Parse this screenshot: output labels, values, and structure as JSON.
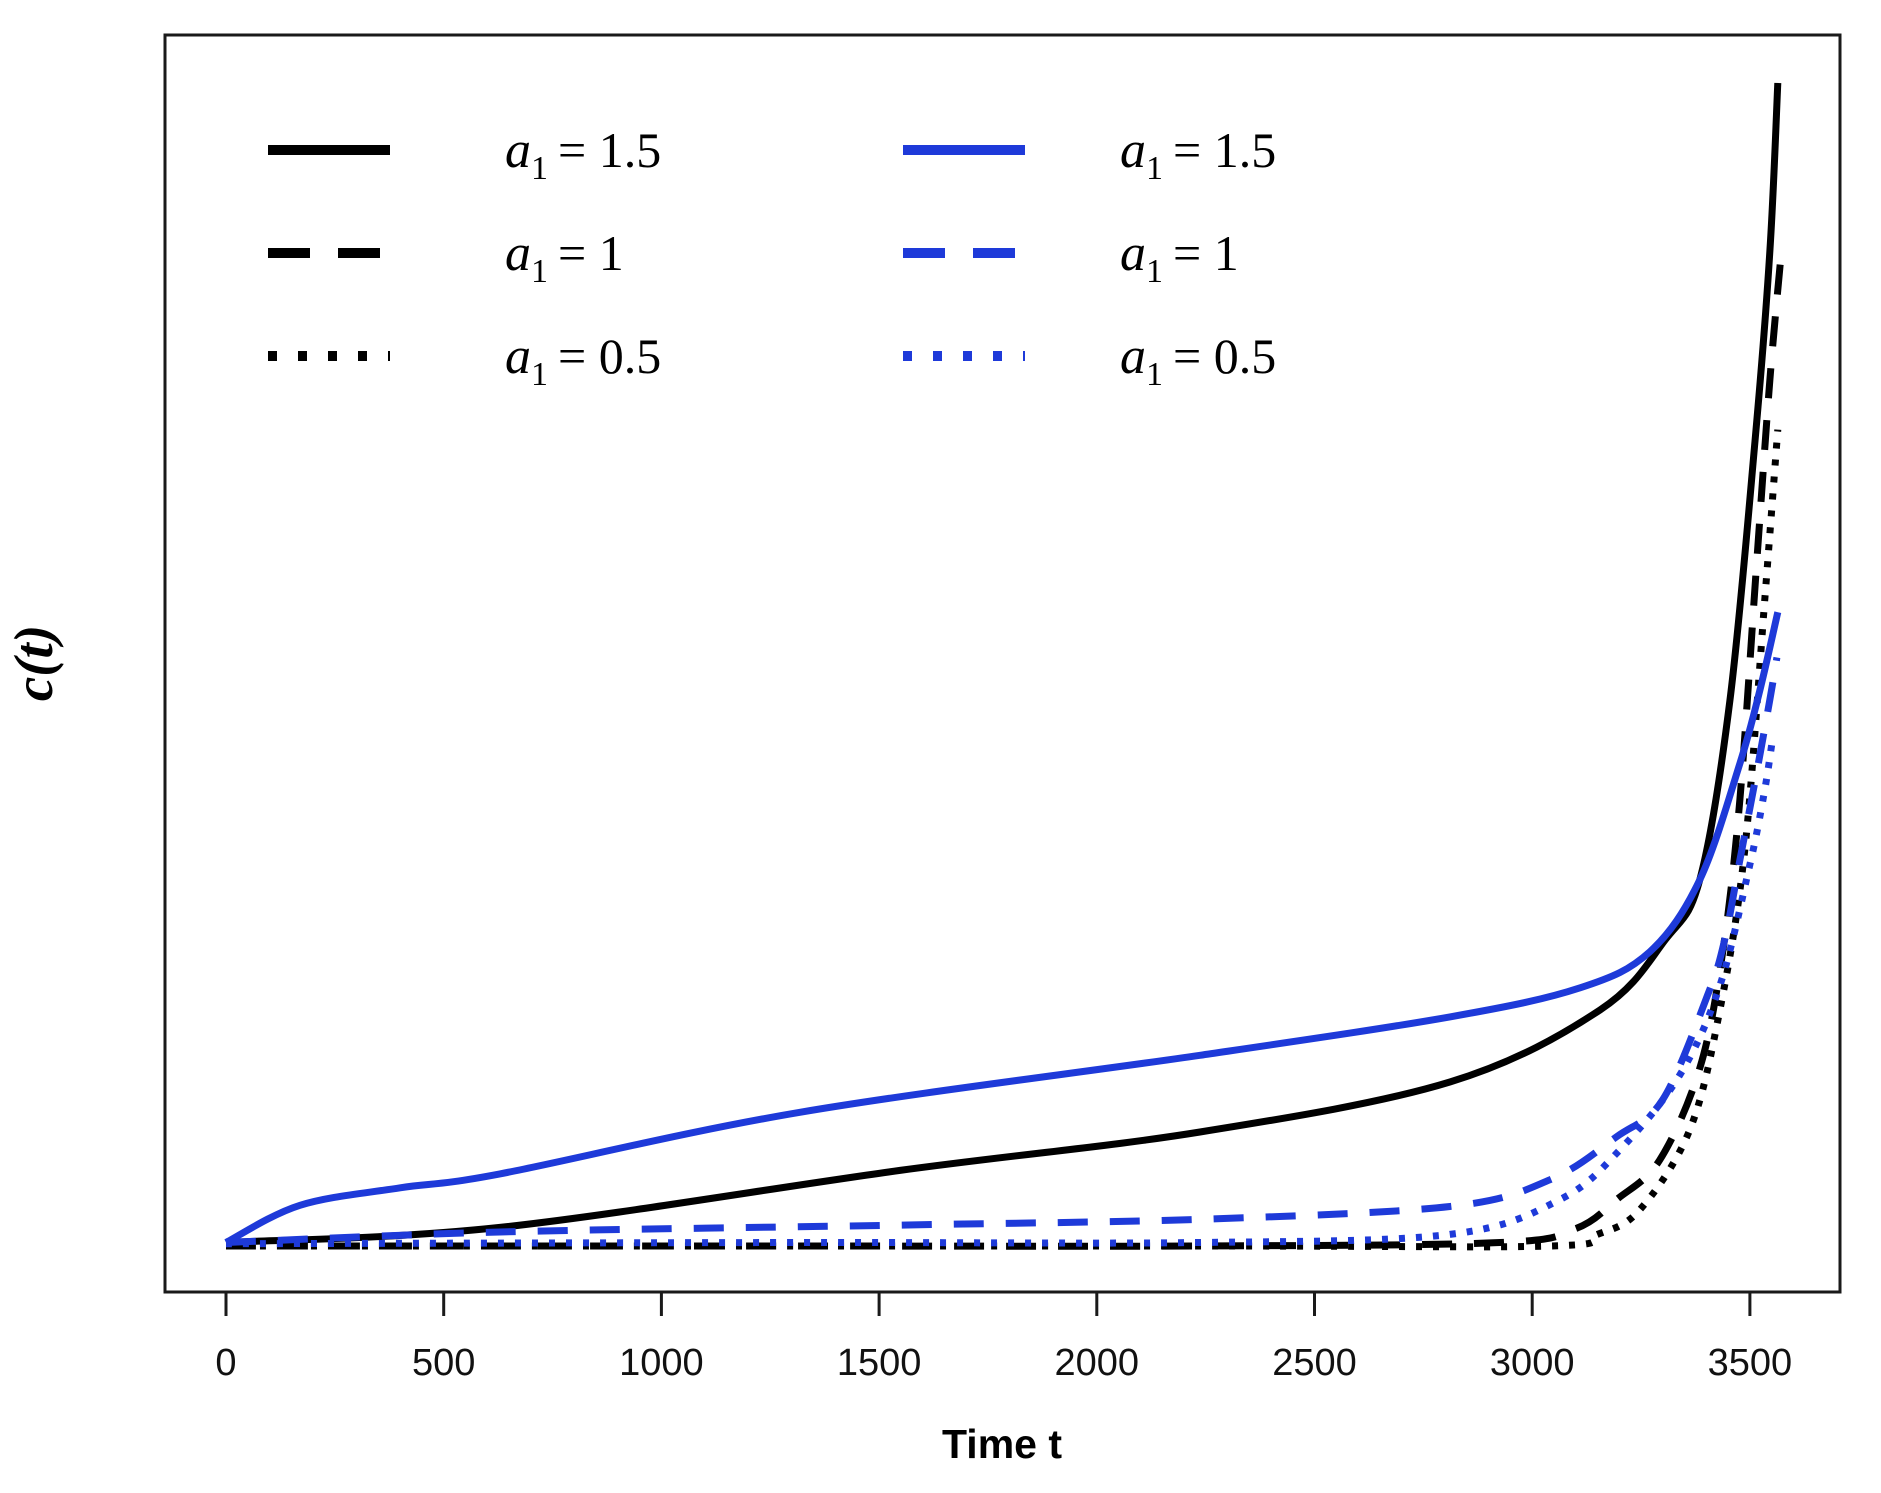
{
  "chart_data": {
    "type": "line",
    "title": "",
    "xlabel": "Time t",
    "ylabel": "c(t)",
    "x_ticks": [
      0,
      500,
      1000,
      1500,
      2000,
      2500,
      3000,
      3500
    ],
    "xlim": [
      0,
      3600
    ],
    "y_tick_labels": [],
    "ylim_normalized": [
      0,
      1
    ],
    "grid": false,
    "legend_position": "top-left-inside",
    "colors": {
      "black": "#000000",
      "blue": "#1e3ad9"
    },
    "series": [
      {
        "name": "black-solid",
        "color": "black",
        "style": "solid",
        "a1": "1.5",
        "points": [
          [
            0,
            0.003
          ],
          [
            629,
            0.016
          ],
          [
            1548,
            0.065
          ],
          [
            2237,
            0.098
          ],
          [
            2811,
            0.141
          ],
          [
            3156,
            0.203
          ],
          [
            3305,
            0.263
          ],
          [
            3385,
            0.315
          ],
          [
            3454,
            0.469
          ],
          [
            3512,
            0.693
          ],
          [
            3546,
            0.856
          ],
          [
            3564,
            1.0
          ]
        ]
      },
      {
        "name": "black-dashed",
        "color": "black",
        "style": "dashed",
        "a1": "1",
        "points": [
          [
            0,
            0.0
          ],
          [
            1318,
            0.0
          ],
          [
            2237,
            0.0
          ],
          [
            2926,
            0.003
          ],
          [
            3100,
            0.015
          ],
          [
            3194,
            0.04
          ],
          [
            3293,
            0.074
          ],
          [
            3385,
            0.153
          ],
          [
            3438,
            0.254
          ],
          [
            3477,
            0.384
          ],
          [
            3516,
            0.59
          ],
          [
            3546,
            0.745
          ],
          [
            3571,
            0.85
          ]
        ]
      },
      {
        "name": "black-dotted",
        "color": "black",
        "style": "dotted",
        "a1": "0.5",
        "points": [
          [
            0,
            0.0
          ],
          [
            2237,
            0.0
          ],
          [
            3041,
            0.0
          ],
          [
            3150,
            0.01
          ],
          [
            3247,
            0.031
          ],
          [
            3362,
            0.1
          ],
          [
            3431,
            0.203
          ],
          [
            3488,
            0.34
          ],
          [
            3534,
            0.555
          ],
          [
            3564,
            0.702
          ]
        ]
      },
      {
        "name": "blue-solid",
        "color": "blue",
        "style": "solid",
        "a1": "1.5",
        "points": [
          [
            0,
            0.003
          ],
          [
            170,
            0.035
          ],
          [
            400,
            0.05
          ],
          [
            629,
            0.062
          ],
          [
            1318,
            0.115
          ],
          [
            2237,
            0.164
          ],
          [
            2811,
            0.197
          ],
          [
            3110,
            0.222
          ],
          [
            3270,
            0.253
          ],
          [
            3385,
            0.315
          ],
          [
            3477,
            0.415
          ],
          [
            3523,
            0.478
          ],
          [
            3564,
            0.545
          ]
        ]
      },
      {
        "name": "blue-dashed",
        "color": "blue",
        "style": "dashed",
        "a1": "1",
        "points": [
          [
            0,
            0.003
          ],
          [
            629,
            0.012
          ],
          [
            1548,
            0.018
          ],
          [
            2237,
            0.023
          ],
          [
            2811,
            0.034
          ],
          [
            3041,
            0.057
          ],
          [
            3194,
            0.094
          ],
          [
            3300,
            0.126
          ],
          [
            3403,
            0.216
          ],
          [
            3442,
            0.263
          ],
          [
            3477,
            0.332
          ],
          [
            3512,
            0.4
          ],
          [
            3546,
            0.47
          ],
          [
            3562,
            0.506
          ]
        ]
      },
      {
        "name": "blue-dotted",
        "color": "blue",
        "style": "dotted",
        "a1": "0.5",
        "points": [
          [
            0,
            0.002
          ],
          [
            1318,
            0.003
          ],
          [
            2237,
            0.003
          ],
          [
            2811,
            0.01
          ],
          [
            3064,
            0.04
          ],
          [
            3202,
            0.083
          ],
          [
            3339,
            0.147
          ],
          [
            3431,
            0.224
          ],
          [
            3500,
            0.328
          ],
          [
            3534,
            0.392
          ],
          [
            3550,
            0.431
          ]
        ]
      }
    ]
  },
  "axes": {
    "x_title": "Time t",
    "y_title": "c(t)"
  },
  "legend": {
    "columns": [
      {
        "color_key": "black",
        "entries": [
          {
            "style": "solid",
            "var": "a",
            "sub": "1",
            "eq": "=",
            "value": "1.5"
          },
          {
            "style": "dashed",
            "var": "a",
            "sub": "1",
            "eq": "=",
            "value": "1"
          },
          {
            "style": "dotted",
            "var": "a",
            "sub": "1",
            "eq": "=",
            "value": "0.5"
          }
        ]
      },
      {
        "color_key": "blue",
        "entries": [
          {
            "style": "solid",
            "var": "a",
            "sub": "1",
            "eq": "=",
            "value": "1.5"
          },
          {
            "style": "dashed",
            "var": "a",
            "sub": "1",
            "eq": "=",
            "value": "1"
          },
          {
            "style": "dotted",
            "var": "a",
            "sub": "1",
            "eq": "=",
            "value": "0.5"
          }
        ]
      }
    ]
  }
}
